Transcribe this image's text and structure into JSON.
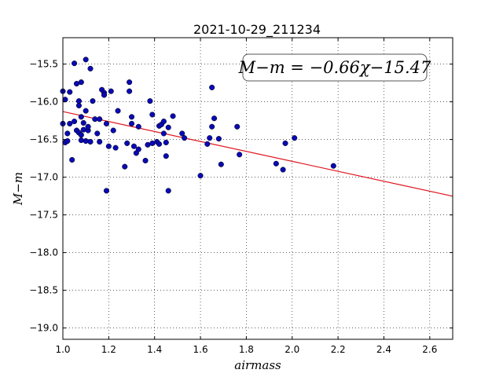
{
  "chart_data": {
    "type": "scatter",
    "title": "2021-10-29_211234",
    "xlabel": "airmass",
    "ylabel": "M−m",
    "xlim": [
      1.0,
      2.7
    ],
    "ylim": [
      -19.15,
      -15.15
    ],
    "x_ticks": [
      1.0,
      1.2,
      1.4,
      1.6,
      1.8,
      2.0,
      2.2,
      2.4,
      2.6
    ],
    "x_tick_labels": [
      "1.0",
      "1.2",
      "1.4",
      "1.6",
      "1.8",
      "2.0",
      "2.2",
      "2.4",
      "2.6"
    ],
    "y_ticks": [
      -19.0,
      -18.5,
      -18.0,
      -17.5,
      -17.0,
      -16.5,
      -16.0,
      -15.5
    ],
    "y_tick_labels": [
      "−19.0",
      "−18.5",
      "−18.0",
      "−17.5",
      "−17.0",
      "−16.5",
      "−16.0",
      "−15.5"
    ],
    "grid": true,
    "annotation": "M−m = −0.66χ−15.47",
    "annotation_position": "top-right",
    "fit": {
      "slope": -0.66,
      "intercept": -15.47,
      "color": "#e0141e"
    },
    "point_color": "#0a0ab4",
    "points": [
      [
        1.0,
        -15.86
      ],
      [
        1.0,
        -16.29
      ],
      [
        1.01,
        -15.97
      ],
      [
        1.01,
        -16.54
      ],
      [
        1.02,
        -16.52
      ],
      [
        1.02,
        -16.42
      ],
      [
        1.03,
        -16.29
      ],
      [
        1.03,
        -15.87
      ],
      [
        1.04,
        -16.77
      ],
      [
        1.05,
        -16.26
      ],
      [
        1.05,
        -15.49
      ],
      [
        1.06,
        -16.38
      ],
      [
        1.06,
        -15.76
      ],
      [
        1.07,
        -16.41
      ],
      [
        1.07,
        -15.99
      ],
      [
        1.07,
        -16.05
      ],
      [
        1.08,
        -16.2
      ],
      [
        1.08,
        -16.44
      ],
      [
        1.08,
        -16.51
      ],
      [
        1.08,
        -15.74
      ],
      [
        1.09,
        -16.28
      ],
      [
        1.09,
        -16.37
      ],
      [
        1.1,
        -16.12
      ],
      [
        1.1,
        -15.44
      ],
      [
        1.1,
        -16.52
      ],
      [
        1.11,
        -16.38
      ],
      [
        1.11,
        -16.33
      ],
      [
        1.12,
        -15.56
      ],
      [
        1.12,
        -16.53
      ],
      [
        1.13,
        -15.99
      ],
      [
        1.14,
        -16.23
      ],
      [
        1.15,
        -16.42
      ],
      [
        1.16,
        -16.23
      ],
      [
        1.16,
        -16.53
      ],
      [
        1.17,
        -15.84
      ],
      [
        1.18,
        -15.88
      ],
      [
        1.18,
        -15.91
      ],
      [
        1.19,
        -16.29
      ],
      [
        1.19,
        -17.18
      ],
      [
        1.2,
        -16.59
      ],
      [
        1.21,
        -15.86
      ],
      [
        1.22,
        -16.38
      ],
      [
        1.23,
        -16.61
      ],
      [
        1.24,
        -16.12
      ],
      [
        1.27,
        -16.86
      ],
      [
        1.28,
        -16.55
      ],
      [
        1.29,
        -15.74
      ],
      [
        1.29,
        -15.86
      ],
      [
        1.3,
        -16.2
      ],
      [
        1.3,
        -16.29
      ],
      [
        1.31,
        -16.59
      ],
      [
        1.32,
        -16.68
      ],
      [
        1.33,
        -16.33
      ],
      [
        1.33,
        -16.63
      ],
      [
        1.36,
        -16.78
      ],
      [
        1.37,
        -16.57
      ],
      [
        1.38,
        -15.99
      ],
      [
        1.39,
        -16.17
      ],
      [
        1.39,
        -16.55
      ],
      [
        1.41,
        -16.53
      ],
      [
        1.42,
        -16.32
      ],
      [
        1.42,
        -16.56
      ],
      [
        1.43,
        -16.3
      ],
      [
        1.44,
        -16.26
      ],
      [
        1.44,
        -16.42
      ],
      [
        1.45,
        -16.54
      ],
      [
        1.45,
        -16.72
      ],
      [
        1.46,
        -16.34
      ],
      [
        1.46,
        -17.18
      ],
      [
        1.48,
        -16.19
      ],
      [
        1.52,
        -16.42
      ],
      [
        1.53,
        -16.48
      ],
      [
        1.6,
        -16.98
      ],
      [
        1.63,
        -16.56
      ],
      [
        1.64,
        -16.48
      ],
      [
        1.65,
        -16.33
      ],
      [
        1.65,
        -15.81
      ],
      [
        1.66,
        -16.22
      ],
      [
        1.68,
        -16.49
      ],
      [
        1.69,
        -16.83
      ],
      [
        1.76,
        -16.33
      ],
      [
        1.77,
        -16.7
      ],
      [
        1.93,
        -16.82
      ],
      [
        1.96,
        -16.9
      ],
      [
        1.97,
        -16.55
      ],
      [
        2.01,
        -16.48
      ],
      [
        2.18,
        -16.85
      ]
    ]
  }
}
